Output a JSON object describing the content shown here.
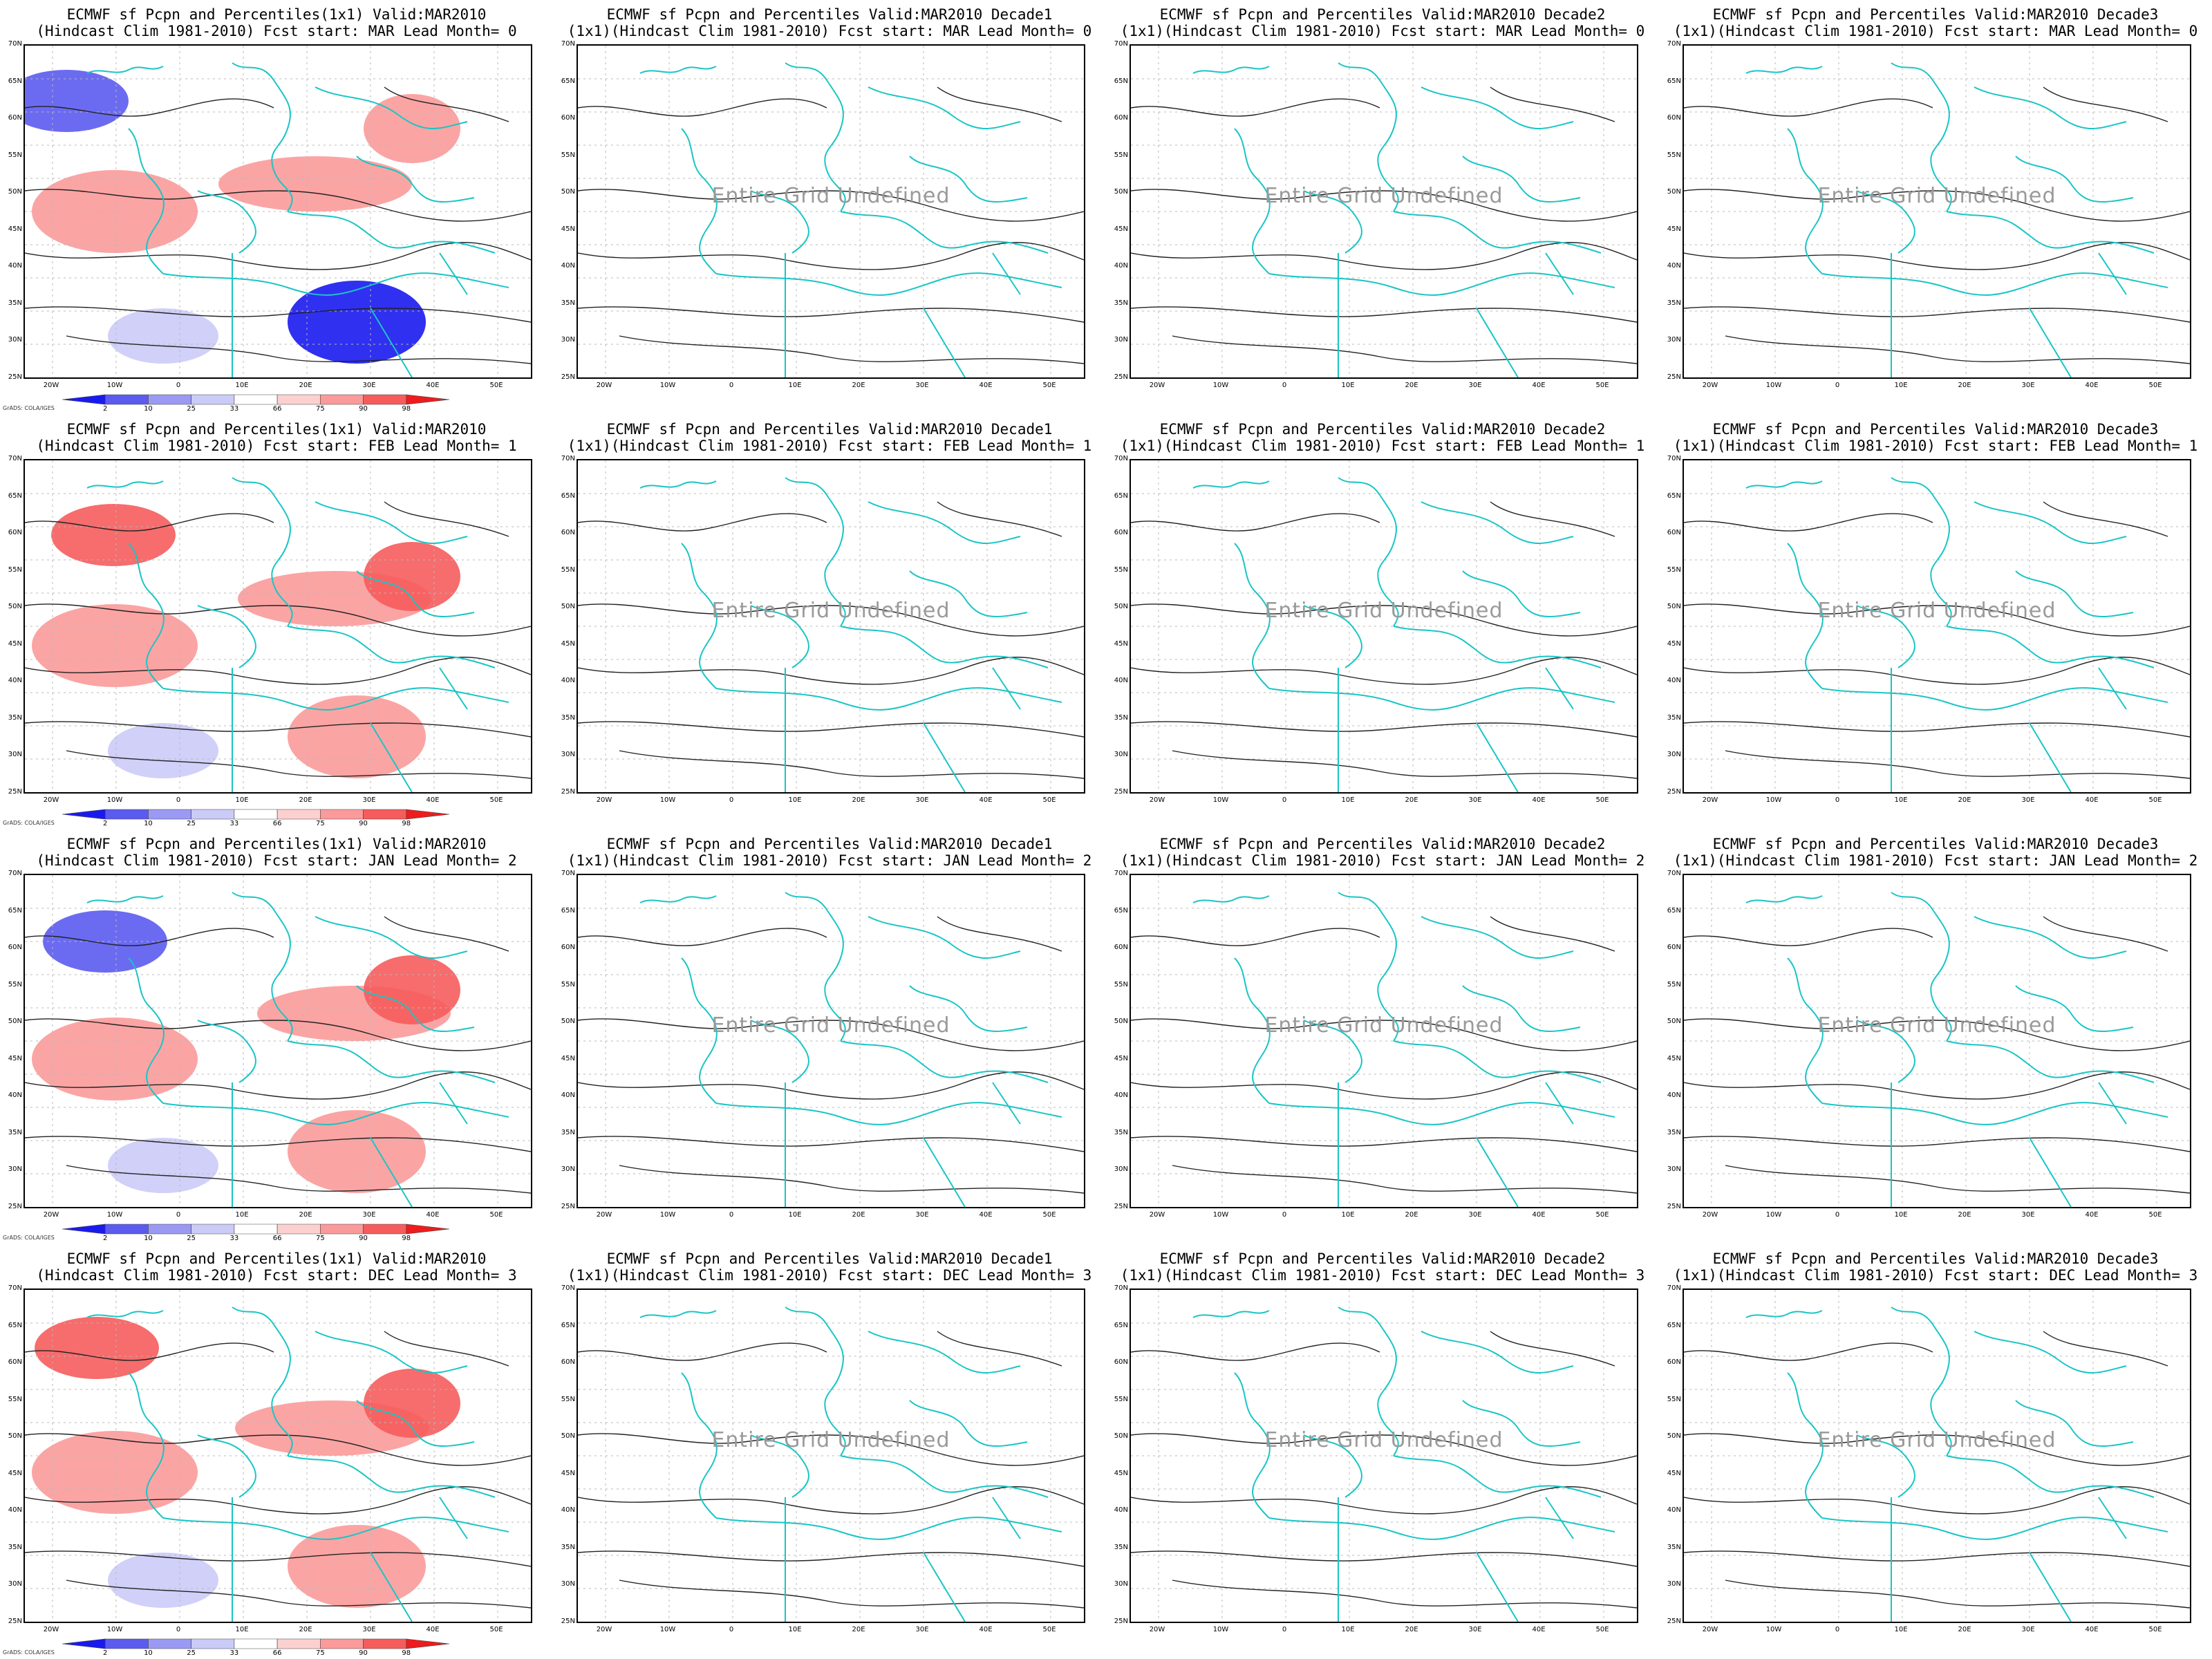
{
  "map": {
    "lat_labels": [
      "70N",
      "65N",
      "60N",
      "55N",
      "50N",
      "45N",
      "40N",
      "35N",
      "30N",
      "25N"
    ],
    "lon_labels": [
      "20W",
      "10W",
      "0",
      "10E",
      "20E",
      "30E",
      "40E",
      "50E"
    ],
    "undefined_label": "Entire Grid Undefined",
    "credit": "GrADS: COLA/IGES"
  },
  "colorbar": {
    "labels": [
      "2",
      "10",
      "25",
      "33",
      "66",
      "75",
      "90",
      "98"
    ],
    "colors": [
      "#1a1aee",
      "#5b5bf0",
      "#9a9af4",
      "#cbcbf8",
      "#ffffff",
      "#fdd0d0",
      "#fb9a9a",
      "#f65c5c",
      "#ee1c1c"
    ]
  },
  "colors": {
    "contour": "#222222",
    "coast": "#19c5c5",
    "grid": "#b8b8b8"
  },
  "panels": [
    {
      "title1": "ECMWF sf Pcpn and Percentiles(1x1) Valid:MAR2010",
      "title2": "(Hindcast Clim 1981-2010) Fcst start: MAR  Lead Month= 0",
      "shaded": true,
      "undefined": false
    },
    {
      "title1": "ECMWF sf Pcpn and Percentiles Valid:MAR2010 Decade1",
      "title2": "(1x1)(Hindcast Clim 1981-2010) Fcst start: MAR  Lead Month= 0",
      "shaded": false,
      "undefined": true
    },
    {
      "title1": "ECMWF sf Pcpn and Percentiles Valid:MAR2010 Decade2",
      "title2": "(1x1)(Hindcast Clim 1981-2010) Fcst start: MAR  Lead Month= 0",
      "shaded": false,
      "undefined": true
    },
    {
      "title1": "ECMWF sf Pcpn and Percentiles Valid:MAR2010 Decade3",
      "title2": "(1x1)(Hindcast Clim 1981-2010) Fcst start: MAR  Lead Month= 0",
      "shaded": false,
      "undefined": true
    },
    {
      "title1": "ECMWF sf Pcpn and Percentiles(1x1) Valid:MAR2010",
      "title2": "(Hindcast Clim 1981-2010) Fcst start: FEB  Lead Month= 1",
      "shaded": true,
      "undefined": false
    },
    {
      "title1": "ECMWF sf Pcpn and Percentiles Valid:MAR2010 Decade1",
      "title2": "(1x1)(Hindcast Clim 1981-2010) Fcst start: FEB  Lead Month= 1",
      "shaded": false,
      "undefined": true
    },
    {
      "title1": "ECMWF sf Pcpn and Percentiles Valid:MAR2010 Decade2",
      "title2": "(1x1)(Hindcast Clim 1981-2010) Fcst start: FEB  Lead Month= 1",
      "shaded": false,
      "undefined": true
    },
    {
      "title1": "ECMWF sf Pcpn and Percentiles Valid:MAR2010 Decade3",
      "title2": "(1x1)(Hindcast Clim 1981-2010) Fcst start: FEB  Lead Month= 1",
      "shaded": false,
      "undefined": true
    },
    {
      "title1": "ECMWF sf Pcpn and Percentiles(1x1) Valid:MAR2010",
      "title2": "(Hindcast Clim 1981-2010) Fcst start: JAN  Lead Month= 2",
      "shaded": true,
      "undefined": false
    },
    {
      "title1": "ECMWF sf Pcpn and Percentiles Valid:MAR2010 Decade1",
      "title2": "(1x1)(Hindcast Clim 1981-2010) Fcst start: JAN  Lead Month= 2",
      "shaded": false,
      "undefined": true
    },
    {
      "title1": "ECMWF sf Pcpn and Percentiles Valid:MAR2010 Decade2",
      "title2": "(1x1)(Hindcast Clim 1981-2010) Fcst start: JAN  Lead Month= 2",
      "shaded": false,
      "undefined": true
    },
    {
      "title1": "ECMWF sf Pcpn and Percentiles Valid:MAR2010 Decade3",
      "title2": "(1x1)(Hindcast Clim 1981-2010) Fcst start: JAN  Lead Month= 2",
      "shaded": false,
      "undefined": true
    },
    {
      "title1": "ECMWF sf Pcpn and Percentiles(1x1) Valid:MAR2010",
      "title2": "(Hindcast Clim 1981-2010) Fcst start: DEC  Lead Month= 3",
      "shaded": true,
      "undefined": false
    },
    {
      "title1": "ECMWF sf Pcpn and Percentiles Valid:MAR2010 Decade1",
      "title2": "(1x1)(Hindcast Clim 1981-2010) Fcst start: DEC  Lead Month= 3",
      "shaded": false,
      "undefined": true
    },
    {
      "title1": "ECMWF sf Pcpn and Percentiles Valid:MAR2010 Decade2",
      "title2": "(1x1)(Hindcast Clim 1981-2010) Fcst start: DEC  Lead Month= 3",
      "shaded": false,
      "undefined": true
    },
    {
      "title1": "ECMWF sf Pcpn and Percentiles Valid:MAR2010 Decade3",
      "title2": "(1x1)(Hindcast Clim 1981-2010) Fcst start: DEC  Lead Month= 3",
      "shaded": false,
      "undefined": true
    }
  ]
}
